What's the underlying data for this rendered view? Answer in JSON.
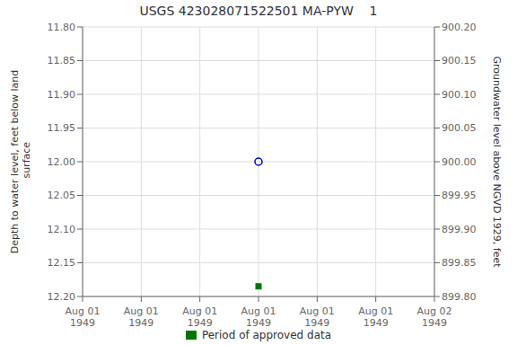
{
  "chart_data": {
    "type": "scatter",
    "title": "USGS 423028071522501 MA-PYW    1",
    "y_label": "Depth to water level, feet below land\n surface",
    "y2_label": "Groundwater level above NGVD 1929, feet",
    "categories": [
      "Aug 01\n1949",
      "Aug 01\n1949",
      "Aug 01\n1949",
      "Aug 01\n1949",
      "Aug 01\n1949",
      "Aug 01\n1949",
      "Aug 02\n1949"
    ],
    "series": [
      {
        "color": "#0000cc",
        "marker": "circle",
        "values": [
          null,
          null,
          null,
          12.0,
          null,
          null,
          null
        ]
      },
      {
        "name": "Period of approved data",
        "color": "#007700",
        "marker": "square",
        "values": [
          null,
          null,
          null,
          12.185,
          null,
          null,
          null
        ]
      }
    ],
    "ylim": [
      12.2,
      11.8
    ],
    "yticks": [
      {
        "value": 11.8,
        "label": "11.80"
      },
      {
        "value": 11.85,
        "label": "11.85"
      },
      {
        "value": 11.9,
        "label": "11.90"
      },
      {
        "value": 11.95,
        "label": "11.95"
      },
      {
        "value": 12.0,
        "label": "12.00"
      },
      {
        "value": 12.05,
        "label": "12.05"
      },
      {
        "value": 12.1,
        "label": "12.10"
      },
      {
        "value": 12.15,
        "label": "12.15"
      },
      {
        "value": 12.2,
        "label": "12.20"
      }
    ],
    "y2lim": [
      899.8,
      900.2
    ],
    "y2ticks": [
      {
        "value": 900.2,
        "label": "900.20"
      },
      {
        "value": 900.15,
        "label": "900.15"
      },
      {
        "value": 900.1,
        "label": "900.10"
      },
      {
        "value": 900.05,
        "label": "900.05"
      },
      {
        "value": 900.0,
        "label": "900.00"
      },
      {
        "value": 899.95,
        "label": "899.95"
      },
      {
        "value": 899.9,
        "label": "899.90"
      },
      {
        "value": 899.85,
        "label": "899.85"
      },
      {
        "value": 899.8,
        "label": "899.80"
      }
    ],
    "grid": true,
    "legend": "bottom"
  }
}
